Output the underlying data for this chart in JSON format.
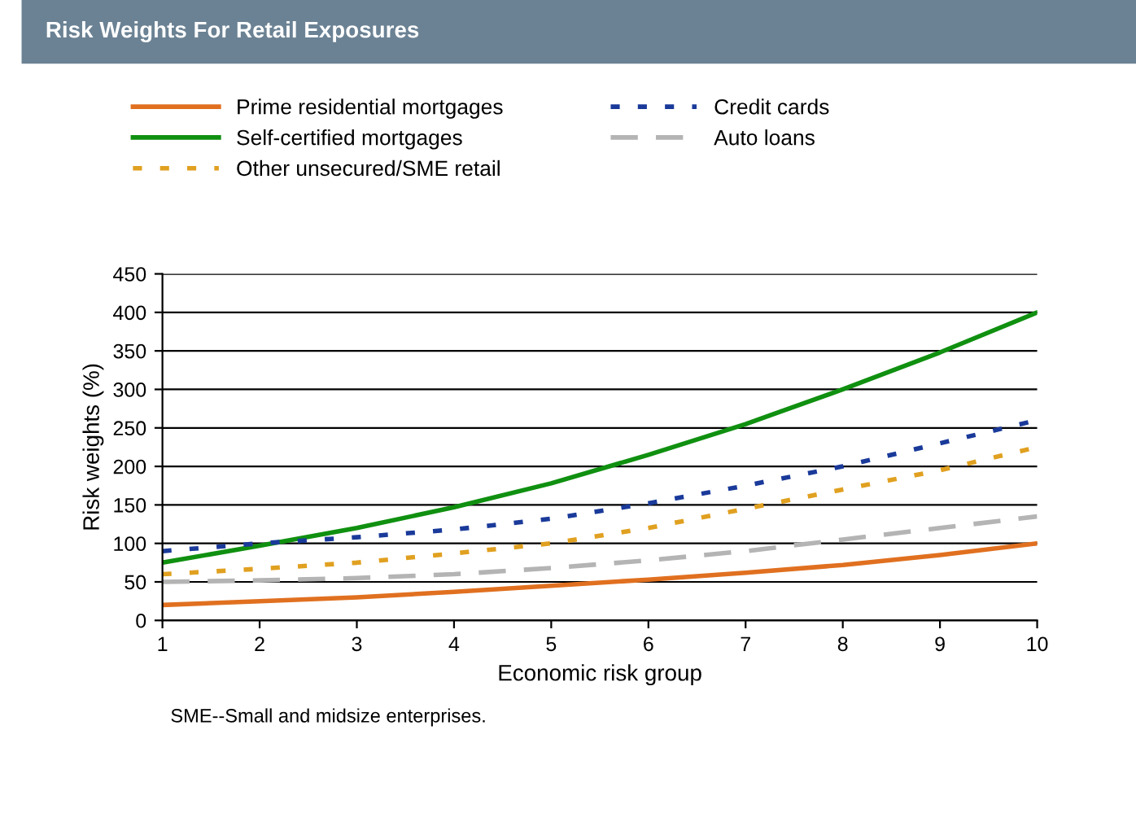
{
  "chart_data": {
    "type": "line",
    "title": "Risk Weights For Retail Exposures",
    "xlabel": "Economic risk group",
    "ylabel": "Risk weights (%)",
    "x": [
      1,
      2,
      3,
      4,
      5,
      6,
      7,
      8,
      9,
      10
    ],
    "series": [
      {
        "name": "Prime residential mortgages",
        "color": "#e07020",
        "line_style": "solid",
        "values": [
          20,
          25,
          30,
          37,
          45,
          53,
          62,
          72,
          85,
          100
        ]
      },
      {
        "name": "Self-certified mortgages",
        "color": "#109010",
        "line_style": "solid",
        "values": [
          75,
          97,
          120,
          147,
          178,
          215,
          255,
          300,
          348,
          400
        ]
      },
      {
        "name": "Other unsecured/SME retail",
        "color": "#e0a020",
        "line_style": "dotted",
        "values": [
          60,
          67,
          75,
          87,
          100,
          120,
          145,
          170,
          195,
          225
        ]
      },
      {
        "name": "Credit cards",
        "color": "#1a3a9a",
        "line_style": "dotted",
        "values": [
          90,
          100,
          108,
          118,
          132,
          152,
          175,
          200,
          230,
          260
        ]
      },
      {
        "name": "Auto loans",
        "color": "#b4b4b4",
        "line_style": "dashed",
        "values": [
          50,
          52,
          55,
          60,
          68,
          78,
          90,
          105,
          120,
          135
        ]
      }
    ],
    "xlim": [
      1,
      10
    ],
    "xticks": [
      1,
      2,
      3,
      4,
      5,
      6,
      7,
      8,
      9,
      10
    ],
    "ylim": [
      0,
      450
    ],
    "yticks": [
      0,
      50,
      100,
      150,
      200,
      250,
      300,
      350,
      400,
      450
    ],
    "grid": "y",
    "legend": "top",
    "marker": "none",
    "annotations": [
      "SME--Small and midsize enterprises."
    ]
  }
}
